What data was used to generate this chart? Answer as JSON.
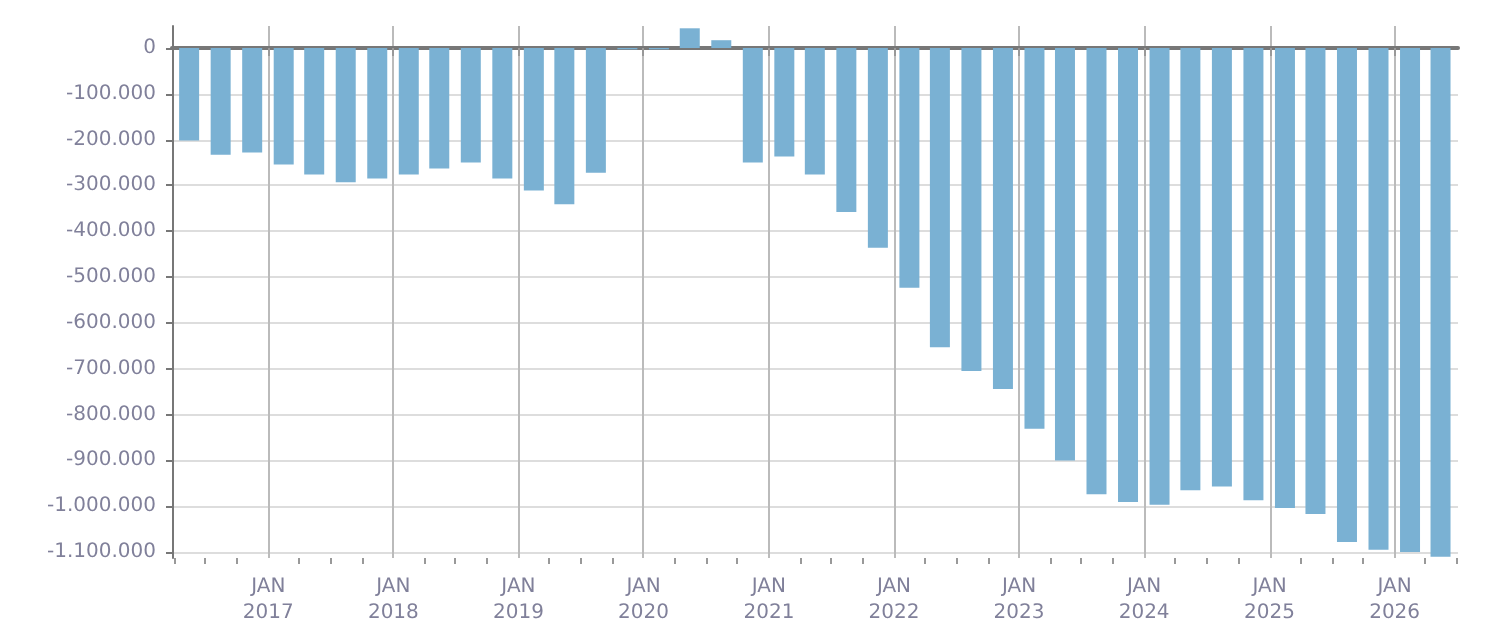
{
  "chart_data": {
    "type": "bar",
    "x": [
      "2016-05-15",
      "2016-08-15",
      "2016-11-15",
      "2017-02-15",
      "2017-05-15",
      "2017-08-15",
      "2017-11-15",
      "2018-02-15",
      "2018-05-15",
      "2018-08-15",
      "2018-11-15",
      "2019-02-15",
      "2019-05-15",
      "2019-08-15",
      "2019-11-15",
      "2020-02-15",
      "2020-05-15",
      "2020-08-15",
      "2020-11-15",
      "2021-02-15",
      "2021-05-15",
      "2021-08-15",
      "2021-11-15",
      "2022-02-15",
      "2022-05-15",
      "2022-08-15",
      "2022-11-15",
      "2023-02-15",
      "2023-05-15",
      "2023-08-15",
      "2023-11-15",
      "2024-02-15",
      "2024-05-15",
      "2024-08-15",
      "2024-11-15",
      "2025-02-15",
      "2025-05-15",
      "2025-08-15",
      "2025-11-15",
      "2026-02-15",
      "2026-05-15"
    ],
    "values": [
      -202000,
      -233000,
      -228000,
      -254000,
      -276000,
      -293000,
      -285000,
      -276000,
      -263000,
      -250000,
      -285000,
      -311000,
      -341000,
      -272000,
      -3000,
      -3000,
      43000,
      17000,
      -250000,
      -237000,
      -276000,
      -358000,
      -436000,
      -523000,
      -653000,
      -705000,
      -744000,
      -831000,
      -900000,
      -974000,
      -991000,
      -997000,
      -965000,
      -957000,
      -987000,
      -1004000,
      -1017000,
      -1078000,
      -1095000,
      -1100000,
      -1110000
    ],
    "color": "#7ab1d3",
    "xlim": [
      "2016-03-26",
      "2026-07-05"
    ],
    "xticks": [
      {
        "value": "2016-04-01",
        "label": null
      },
      {
        "value": "2016-07-01",
        "label": null
      },
      {
        "value": "2016-10-01",
        "label": null
      },
      {
        "value": "2017-01-01",
        "label": "JAN\n2017"
      },
      {
        "value": "2017-04-01",
        "label": null
      },
      {
        "value": "2017-07-01",
        "label": null
      },
      {
        "value": "2017-10-01",
        "label": null
      },
      {
        "value": "2018-01-01",
        "label": "JAN\n2018"
      },
      {
        "value": "2018-04-01",
        "label": null
      },
      {
        "value": "2018-07-01",
        "label": null
      },
      {
        "value": "2018-10-01",
        "label": null
      },
      {
        "value": "2019-01-01",
        "label": "JAN\n2019"
      },
      {
        "value": "2019-04-01",
        "label": null
      },
      {
        "value": "2019-07-01",
        "label": null
      },
      {
        "value": "2019-10-01",
        "label": null
      },
      {
        "value": "2020-01-01",
        "label": "JAN\n2020"
      },
      {
        "value": "2020-04-01",
        "label": null
      },
      {
        "value": "2020-07-01",
        "label": null
      },
      {
        "value": "2020-10-01",
        "label": null
      },
      {
        "value": "2021-01-01",
        "label": "JAN\n2021"
      },
      {
        "value": "2021-04-01",
        "label": null
      },
      {
        "value": "2021-07-01",
        "label": null
      },
      {
        "value": "2021-10-01",
        "label": null
      },
      {
        "value": "2022-01-01",
        "label": "JAN\n2022"
      },
      {
        "value": "2022-04-01",
        "label": null
      },
      {
        "value": "2022-07-01",
        "label": null
      },
      {
        "value": "2022-10-01",
        "label": null
      },
      {
        "value": "2023-01-01",
        "label": "JAN\n2023"
      },
      {
        "value": "2023-04-01",
        "label": null
      },
      {
        "value": "2023-07-01",
        "label": null
      },
      {
        "value": "2023-10-01",
        "label": null
      },
      {
        "value": "2024-01-01",
        "label": "JAN\n2024"
      },
      {
        "value": "2024-04-01",
        "label": null
      },
      {
        "value": "2024-07-01",
        "label": null
      },
      {
        "value": "2024-10-01",
        "label": null
      },
      {
        "value": "2025-01-01",
        "label": "JAN\n2025"
      },
      {
        "value": "2025-04-01",
        "label": null
      },
      {
        "value": "2025-07-01",
        "label": null
      },
      {
        "value": "2025-10-01",
        "label": null
      },
      {
        "value": "2026-01-01",
        "label": "JAN\n2026"
      },
      {
        "value": "2026-04-01",
        "label": null
      },
      {
        "value": "2026-07-01",
        "label": null
      }
    ],
    "ylim": [
      -1113000,
      48000
    ],
    "yticks": [
      {
        "value": 0,
        "label": "0"
      },
      {
        "value": -100000,
        "label": "-100.000"
      },
      {
        "value": -200000,
        "label": "-200.000"
      },
      {
        "value": -300000,
        "label": "-300.000"
      },
      {
        "value": -400000,
        "label": "-400.000"
      },
      {
        "value": -500000,
        "label": "-500.000"
      },
      {
        "value": -600000,
        "label": "-600.000"
      },
      {
        "value": -700000,
        "label": "-700.000"
      },
      {
        "value": -800000,
        "label": "-800.000"
      },
      {
        "value": -900000,
        "label": "-900.000"
      },
      {
        "value": -1000000,
        "label": "-1.000.000"
      },
      {
        "value": -1100000,
        "label": "-1.100.000"
      }
    ],
    "grid": true
  }
}
